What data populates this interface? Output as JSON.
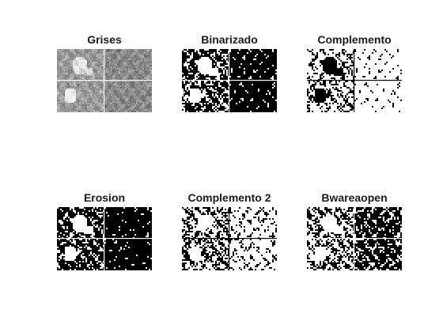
{
  "figure": {
    "panels": [
      {
        "title": "Grises",
        "style": "gray"
      },
      {
        "title": "Binarizado",
        "style": "binary"
      },
      {
        "title": "Complemento",
        "style": "complement"
      },
      {
        "title": "Erosion",
        "style": "erosion"
      },
      {
        "title": "Complemento 2",
        "style": "complement2"
      },
      {
        "title": "Bwareaopen",
        "style": "bwareaopen"
      }
    ]
  }
}
